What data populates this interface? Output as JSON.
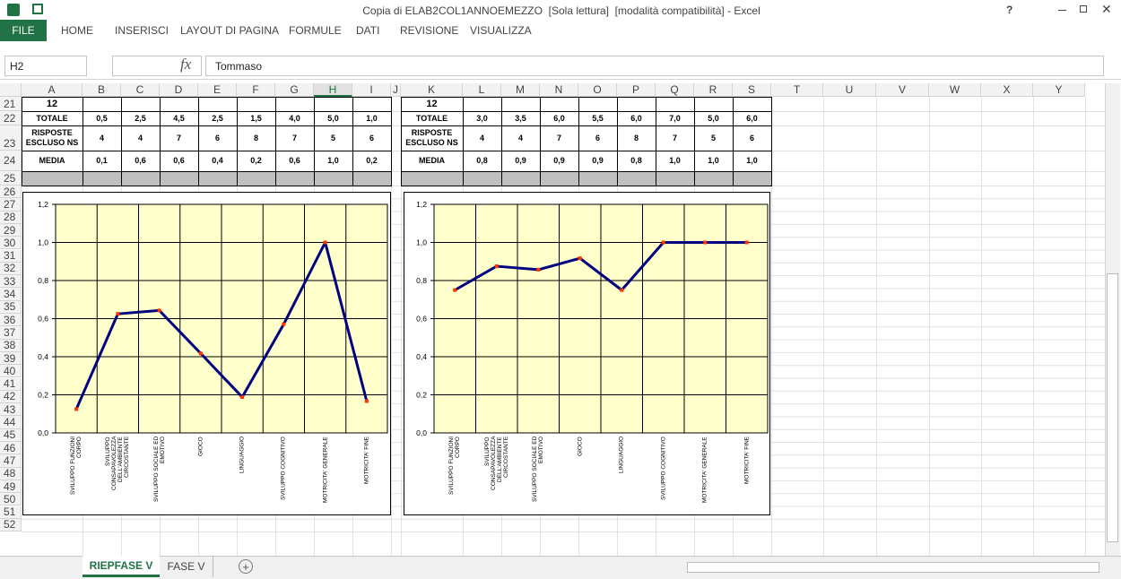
{
  "window": {
    "title": "Copia di ELAB2COL1ANNOEMEZZO  [Sola lettura]  [modalità compatibilità] - Excel",
    "help": "?"
  },
  "ribbon": {
    "tabs": [
      "FILE",
      "HOME",
      "INSERISCI",
      "LAYOUT DI PAGINA",
      "FORMULE",
      "DATI",
      "REVISIONE",
      "VISUALIZZA"
    ]
  },
  "formula_bar": {
    "name_box": "H2",
    "fx": "fx",
    "content": "Tommaso"
  },
  "columns": [
    "A",
    "B",
    "C",
    "D",
    "E",
    "F",
    "G",
    "H",
    "I",
    "J",
    "K",
    "L",
    "M",
    "N",
    "O",
    "P",
    "Q",
    "R",
    "S",
    "T",
    "U",
    "V",
    "W",
    "X",
    "Y"
  ],
  "rows": [
    "21",
    "22",
    "23",
    "24",
    "25",
    "26",
    "27",
    "28",
    "29",
    "30",
    "31",
    "32",
    "33",
    "34",
    "35",
    "36",
    "37",
    "38",
    "39",
    "40",
    "41",
    "42",
    "43",
    "44",
    "45",
    "46",
    "47",
    "48",
    "49",
    "50",
    "51",
    "52"
  ],
  "tables": [
    {
      "rows": [
        [
          "12"
        ],
        [
          "TOTALE",
          "0,5",
          "2,5",
          "4,5",
          "2,5",
          "1,5",
          "4,0",
          "5,0",
          "1,0"
        ],
        [
          "RISPOSTE ESCLUSO NS",
          "4",
          "4",
          "7",
          "6",
          "8",
          "7",
          "5",
          "6"
        ],
        [
          "MEDIA",
          "0,1",
          "0,6",
          "0,6",
          "0,4",
          "0,2",
          "0,6",
          "1,0",
          "0,2"
        ]
      ]
    },
    {
      "rows": [
        [
          "12"
        ],
        [
          "TOTALE",
          "3,0",
          "3,5",
          "6,0",
          "5,5",
          "6,0",
          "7,0",
          "5,0",
          "6,0"
        ],
        [
          "RISPOSTE ESCLUSO NS",
          "4",
          "4",
          "7",
          "6",
          "8",
          "7",
          "5",
          "6"
        ],
        [
          "MEDIA",
          "0,8",
          "0,9",
          "0,9",
          "0,9",
          "0,8",
          "1,0",
          "1,0",
          "1,0"
        ]
      ]
    }
  ],
  "sheet_tabs": [
    "RIEPFASE V",
    "FASE V"
  ],
  "chart_data": [
    {
      "type": "line",
      "categories": [
        "SVILUPPO FUNZIONI CORPO",
        "SVILUPPO CONSAPAVOLEZZA DELL'AMBIENTE CIRCOSTANTE",
        "SVILUPPO SOCIALE ED EMOTIVO",
        "GIOCO",
        "LINGUAGGIO",
        "SVILUPPO COGNITIVO",
        "MOTRICITA' GENERALE",
        "MOTRICITA' FINE"
      ],
      "values": [
        0.125,
        0.625,
        0.643,
        0.417,
        0.188,
        0.571,
        1.0,
        0.167
      ],
      "color": "#000080",
      "marker_color": "#ff3300",
      "ylim": [
        0,
        1.2
      ],
      "yticks": [
        {
          "value": 0,
          "label": "0,0"
        },
        {
          "value": 0.2,
          "label": "0,2"
        },
        {
          "value": 0.4,
          "label": "0,4"
        },
        {
          "value": 0.6,
          "label": "0,6"
        },
        {
          "value": 0.8,
          "label": "0,8"
        },
        {
          "value": 1,
          "label": "1,0"
        },
        {
          "value": 1.2,
          "label": "1,2"
        }
      ],
      "grid": true
    },
    {
      "type": "line",
      "categories": [
        "SVILUPPO FUNZIONI CORPO",
        "SVILUPPO CONSAPAVOLEZZA DELL'AMBIENTE CIRCOSTANTE",
        "SVILUPPO SOCIALE ED EMOTIVO",
        "GIOCO",
        "LINGUAGGIO",
        "SVILUPPO COGNITIVO",
        "MOTRICITA' GENERALE",
        "MOTRICITA' FINE"
      ],
      "values": [
        0.75,
        0.875,
        0.857,
        0.917,
        0.75,
        1.0,
        1.0,
        1.0
      ],
      "color": "#000080",
      "marker_color": "#ff3300",
      "ylim": [
        0,
        1.2
      ],
      "yticks": [
        {
          "value": 0,
          "label": "0,0"
        },
        {
          "value": 0.2,
          "label": "0,2"
        },
        {
          "value": 0.4,
          "label": "0,4"
        },
        {
          "value": 0.6,
          "label": "0,6"
        },
        {
          "value": 0.8,
          "label": "0,8"
        },
        {
          "value": 1,
          "label": "1,0"
        },
        {
          "value": 1.2,
          "label": "1,2"
        }
      ],
      "grid": true
    }
  ]
}
